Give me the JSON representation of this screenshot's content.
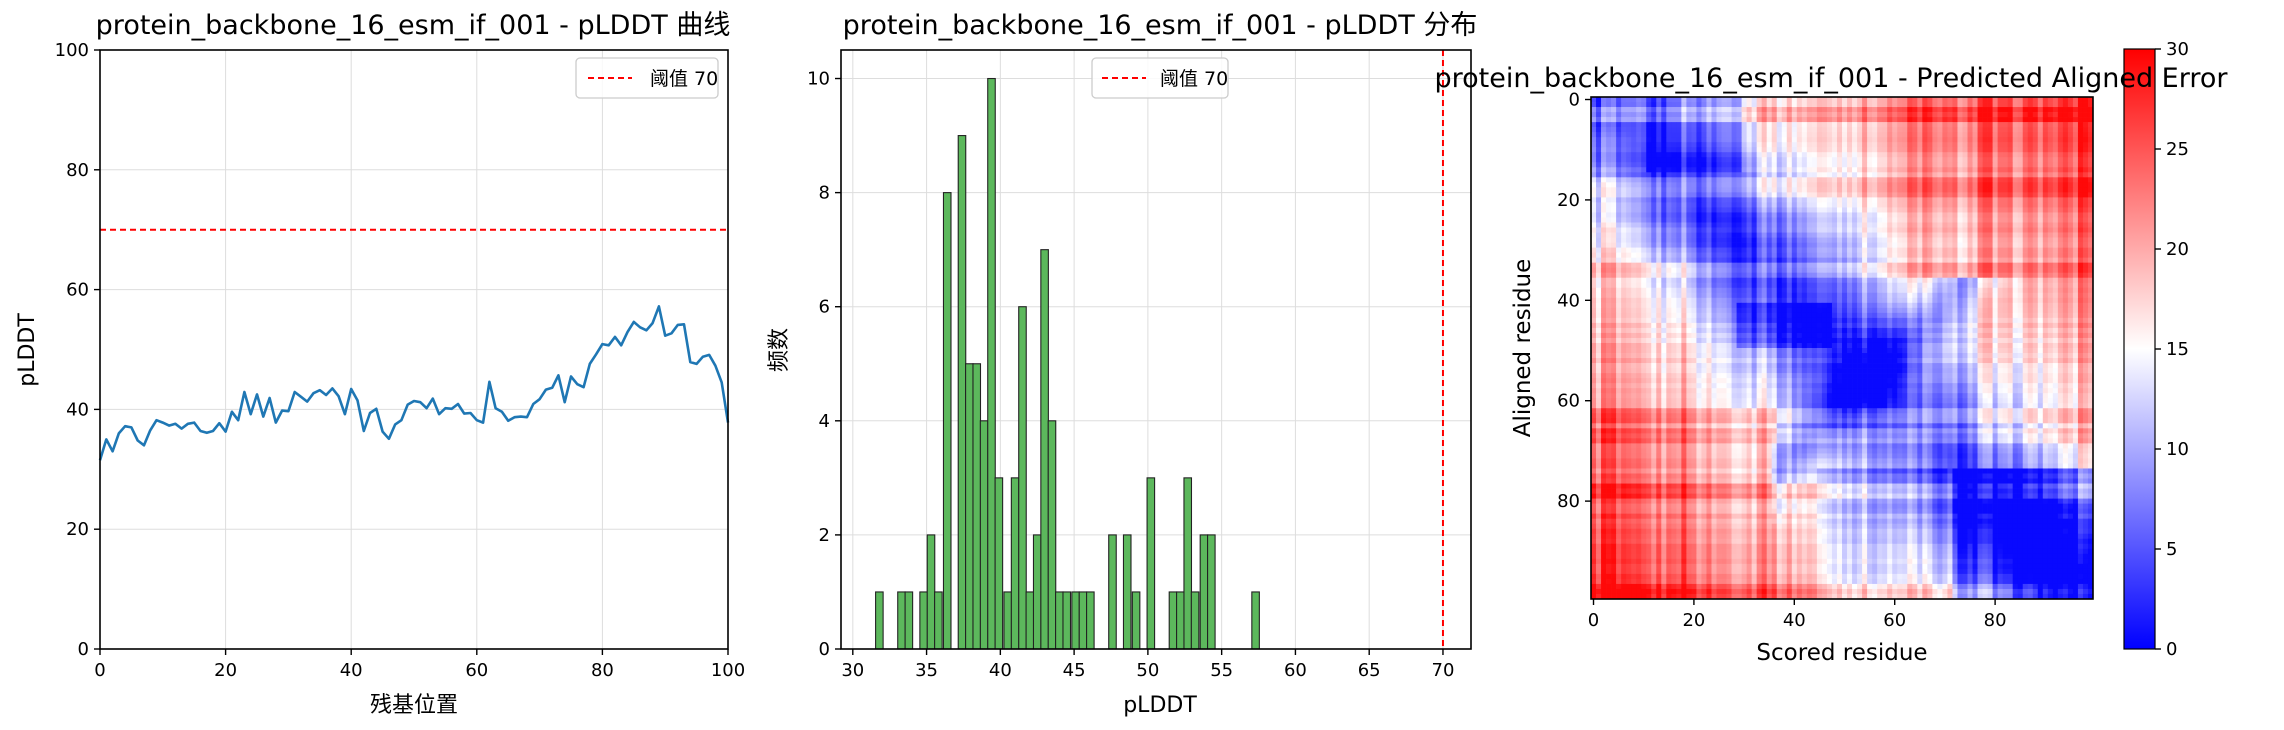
{
  "figure": {
    "background": "#ffffff"
  },
  "chart_data": [
    {
      "type": "line",
      "title": "protein_backbone_16_esm_if_001 - pLDDT 曲线",
      "xlabel": "残基位置",
      "ylabel": "pLDDT",
      "xlim": [
        0,
        100
      ],
      "ylim": [
        0,
        100
      ],
      "xticks": [
        0,
        20,
        40,
        60,
        80,
        100
      ],
      "yticks": [
        0,
        20,
        40,
        60,
        80,
        100
      ],
      "grid": true,
      "legend": {
        "placement": "top-right",
        "entries": [
          "阈值 70"
        ]
      },
      "hline": {
        "y": 70,
        "label": "阈值 70",
        "color": "#ff0000",
        "style": "dashed"
      },
      "series": [
        {
          "color": "#1f77b4",
          "x": [
            0,
            1,
            2,
            3,
            4,
            5,
            6,
            7,
            8,
            9,
            10,
            11,
            12,
            13,
            14,
            15,
            16,
            17,
            18,
            19,
            20,
            21,
            22,
            23,
            24,
            25,
            26,
            27,
            28,
            29,
            30,
            31,
            32,
            33,
            34,
            35,
            36,
            37,
            38,
            39,
            40,
            41,
            42,
            43,
            44,
            45,
            46,
            47,
            48,
            49,
            50,
            51,
            52,
            53,
            54,
            55,
            56,
            57,
            58,
            59,
            60,
            61,
            62,
            63,
            64,
            65,
            66,
            67,
            68,
            69,
            70,
            71,
            72,
            73,
            74,
            75,
            76,
            77,
            78,
            79,
            80,
            81,
            82,
            83,
            84,
            85,
            86,
            87,
            88,
            89,
            90,
            91,
            92,
            93,
            94,
            95,
            96,
            97,
            98,
            99,
            100
          ],
          "y": [
            31.5,
            35,
            33,
            36,
            37.2,
            37,
            34.8,
            34,
            36.5,
            38.2,
            37.8,
            37.3,
            37.6,
            36.8,
            37.6,
            37.8,
            36.4,
            36.1,
            36.4,
            37.7,
            36.3,
            39.6,
            38.2,
            42.9,
            39.2,
            42.5,
            38.8,
            41.9,
            37.8,
            39.8,
            39.7,
            42.9,
            42.1,
            41.3,
            42.7,
            43.2,
            42.4,
            43.5,
            42.2,
            39.2,
            43.4,
            41.5,
            36.4,
            39.4,
            40.1,
            36.3,
            35.1,
            37.5,
            38.2,
            40.8,
            41.4,
            41.2,
            40.2,
            41.8,
            39.2,
            40.2,
            40.1,
            40.9,
            39.3,
            39.4,
            38.2,
            37.8,
            44.6,
            40.2,
            39.6,
            38.1,
            38.7,
            38.8,
            38.7,
            40.9,
            41.7,
            43.3,
            43.6,
            45.7,
            41.2,
            45.5,
            44.2,
            43.7,
            47.6,
            49.2,
            50.9,
            50.7,
            52.1,
            50.7,
            52.9,
            54.6,
            53.7,
            53.2,
            54.4,
            57.2,
            52.3,
            52.7,
            54.1,
            54.2,
            47.9,
            47.6,
            48.8,
            49.1,
            47.3,
            44.5,
            37.8
          ]
        }
      ]
    },
    {
      "type": "bar",
      "title": "protein_backbone_16_esm_if_001 - pLDDT 分布",
      "xlabel": "pLDDT",
      "ylabel": "频数",
      "xlim": [
        29.2,
        71.9
      ],
      "ylim": [
        0,
        10.5
      ],
      "xticks": [
        30,
        35,
        40,
        45,
        50,
        55,
        60,
        65,
        70
      ],
      "yticks": [
        0,
        2,
        4,
        6,
        8,
        10
      ],
      "grid": true,
      "legend": {
        "placement": "top-center",
        "entries": [
          "阈值 70"
        ]
      },
      "vline": {
        "x": 70,
        "label": "阈值 70",
        "color": "#ff0000",
        "style": "dashed"
      },
      "bar_color": "#5cb85c",
      "bin_width": 0.51,
      "bins": [
        {
          "x": 31.8,
          "count": 1
        },
        {
          "x": 33.3,
          "count": 1
        },
        {
          "x": 33.8,
          "count": 1
        },
        {
          "x": 34.8,
          "count": 1
        },
        {
          "x": 35.3,
          "count": 2
        },
        {
          "x": 35.8,
          "count": 1
        },
        {
          "x": 36.4,
          "count": 8
        },
        {
          "x": 37.4,
          "count": 9
        },
        {
          "x": 37.9,
          "count": 5
        },
        {
          "x": 38.4,
          "count": 5
        },
        {
          "x": 38.9,
          "count": 4
        },
        {
          "x": 39.4,
          "count": 10
        },
        {
          "x": 39.9,
          "count": 3
        },
        {
          "x": 40.5,
          "count": 1
        },
        {
          "x": 41.0,
          "count": 3
        },
        {
          "x": 41.5,
          "count": 6
        },
        {
          "x": 42.0,
          "count": 1
        },
        {
          "x": 42.5,
          "count": 2
        },
        {
          "x": 43.0,
          "count": 7
        },
        {
          "x": 43.5,
          "count": 4
        },
        {
          "x": 44.0,
          "count": 1
        },
        {
          "x": 44.5,
          "count": 1
        },
        {
          "x": 45.1,
          "count": 1
        },
        {
          "x": 45.6,
          "count": 1
        },
        {
          "x": 46.1,
          "count": 1
        },
        {
          "x": 47.6,
          "count": 2
        },
        {
          "x": 48.6,
          "count": 2
        },
        {
          "x": 49.2,
          "count": 1
        },
        {
          "x": 50.2,
          "count": 3
        },
        {
          "x": 51.7,
          "count": 1
        },
        {
          "x": 52.2,
          "count": 1
        },
        {
          "x": 52.7,
          "count": 3
        },
        {
          "x": 53.2,
          "count": 1
        },
        {
          "x": 53.8,
          "count": 2
        },
        {
          "x": 54.3,
          "count": 2
        },
        {
          "x": 57.3,
          "count": 1
        }
      ]
    },
    {
      "type": "heatmap",
      "title": "protein_backbone_16_esm_if_001 - Predicted Aligned Error",
      "xlabel": "Scored residue",
      "ylabel": "Aligned residue",
      "n": 100,
      "xticks": [
        0,
        20,
        40,
        60,
        80
      ],
      "yticks": [
        0,
        20,
        40,
        60,
        80
      ],
      "colormap": "bwr",
      "colorbar": {
        "min": 0,
        "max": 30,
        "ticks": [
          0,
          5,
          10,
          15,
          20,
          25,
          30
        ]
      }
    }
  ]
}
